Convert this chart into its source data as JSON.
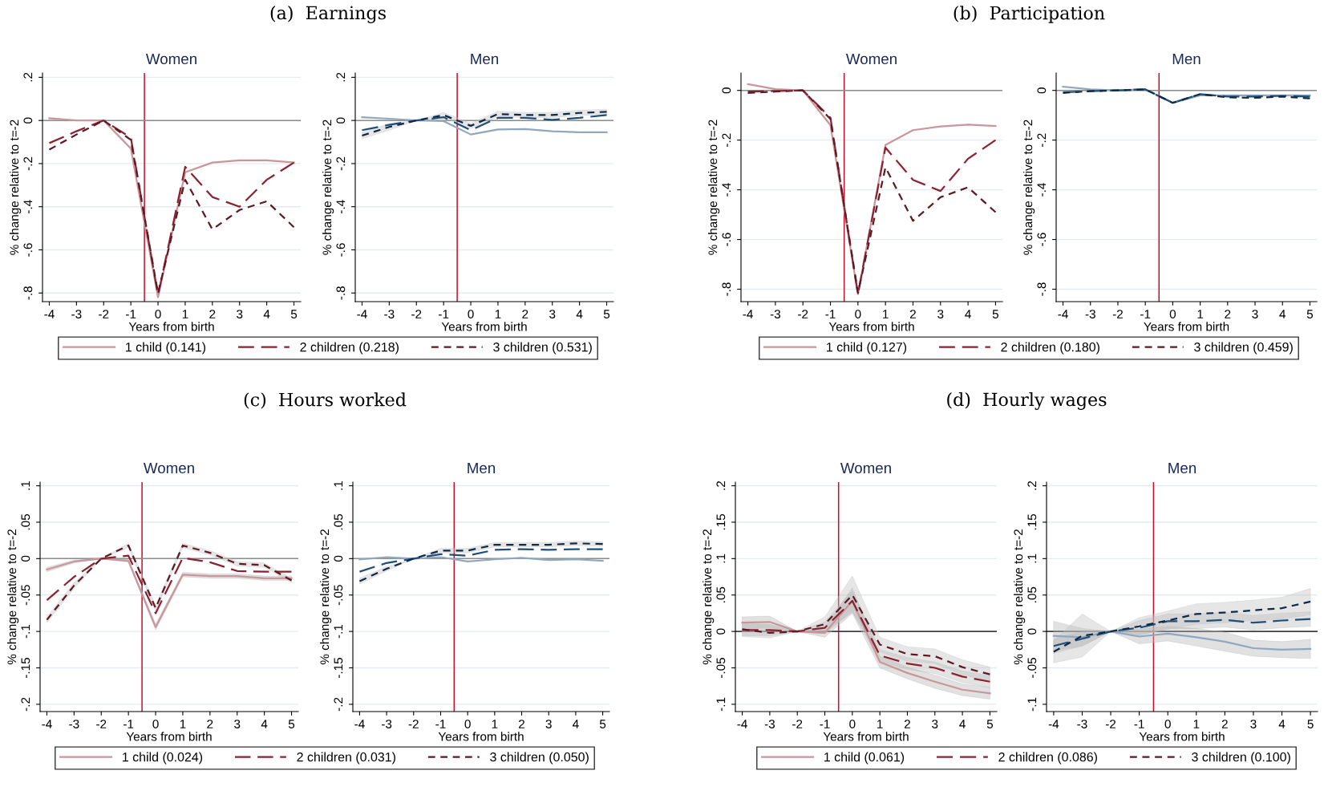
{
  "chart_data": [
    {
      "type": "line",
      "subtitle": "(a)  Earnings",
      "title": "Women",
      "xlabel": "Years from birth",
      "ylabel": "% change relative to t=-2",
      "x": [
        -4,
        -3,
        -2,
        -1,
        0,
        1,
        2,
        3,
        4,
        5
      ],
      "xlim": [
        -4.25,
        5.25
      ],
      "xticks": [
        -4,
        -3,
        -2,
        -1,
        0,
        1,
        2,
        3,
        4,
        5
      ],
      "ylim": [
        -0.84,
        0.22
      ],
      "yticks": [
        {
          "value": -0.8,
          "label": "-.8"
        },
        {
          "value": -0.6,
          "label": "-.6"
        },
        {
          "value": -0.4,
          "label": "-.4"
        },
        {
          "value": -0.2,
          "label": "-.2"
        },
        0,
        {
          "value": 0.2,
          "label": ".2"
        }
      ],
      "grid": "y",
      "legend": "bottom",
      "ref_lines": [
        {
          "axis": "x",
          "value": -0.5,
          "color": "#c8102e"
        },
        {
          "axis": "y",
          "value": 0,
          "color": "#8c8c8c"
        }
      ],
      "series": [
        {
          "name": "1 child (0.141)",
          "color": "#c9969c",
          "line_style": "solid",
          "values": [
            0.01,
            0,
            0,
            -0.13,
            -0.82,
            -0.24,
            -0.195,
            -0.185,
            -0.185,
            -0.195
          ]
        },
        {
          "name": "2 children (0.218)",
          "color": "#8b2232",
          "line_style": "dashed",
          "values": [
            -0.105,
            -0.05,
            0,
            -0.08,
            -0.81,
            -0.215,
            -0.355,
            -0.4,
            -0.275,
            -0.195
          ]
        },
        {
          "name": "3 children (0.531)",
          "color": "#5e1a24",
          "line_style": "dashed",
          "values": [
            -0.135,
            -0.065,
            0,
            -0.09,
            -0.8,
            -0.275,
            -0.505,
            -0.415,
            -0.375,
            -0.495
          ]
        }
      ]
    },
    {
      "type": "line",
      "title": "Men",
      "xlabel": "Years from birth",
      "ylabel": "% change relative to t=-2",
      "x": [
        -4,
        -3,
        -2,
        -1,
        0,
        1,
        2,
        3,
        4,
        5
      ],
      "xlim": [
        -4.25,
        5.25
      ],
      "xticks": [
        -4,
        -3,
        -2,
        -1,
        0,
        1,
        2,
        3,
        4,
        5
      ],
      "ylim": [
        -0.84,
        0.22
      ],
      "yticks": [
        {
          "value": -0.8,
          "label": "-.8"
        },
        {
          "value": -0.6,
          "label": "-.6"
        },
        {
          "value": -0.4,
          "label": "-.4"
        },
        {
          "value": -0.2,
          "label": "-.2"
        },
        0,
        {
          "value": 0.2,
          "label": ".2"
        }
      ],
      "grid": "y",
      "ref_lines": [
        {
          "axis": "x",
          "value": -0.5,
          "color": "#c8102e"
        },
        {
          "axis": "y",
          "value": 0,
          "color": "#8c8c8c"
        }
      ],
      "series": [
        {
          "color": "#8fa8bf",
          "line_style": "solid",
          "values": [
            0.015,
            0.008,
            0,
            -0.003,
            -0.065,
            -0.042,
            -0.04,
            -0.05,
            -0.055,
            -0.055
          ]
        },
        {
          "color": "#1f4e79",
          "line_style": "dashed",
          "values": [
            -0.045,
            -0.02,
            0,
            0.015,
            -0.045,
            0.012,
            0.012,
            0.003,
            0.012,
            0.025
          ]
        },
        {
          "color": "#0e2a47",
          "line_style": "dashed",
          "values": [
            -0.07,
            -0.03,
            0,
            0.025,
            -0.025,
            0.03,
            0.025,
            0.025,
            0.035,
            0.04
          ],
          "lower": [
            -0.085,
            -0.045,
            0,
            0.013,
            -0.037,
            0.018,
            0.013,
            0.013,
            0.023,
            0.028
          ],
          "upper": [
            -0.055,
            -0.015,
            0,
            0.037,
            -0.013,
            0.042,
            0.037,
            0.037,
            0.047,
            0.052
          ]
        }
      ]
    },
    {
      "type": "line",
      "subtitle": "(b)  Participation",
      "title": "Women",
      "xlabel": "Years from birth",
      "ylabel": "% change relative to t=-2",
      "x": [
        -4,
        -3,
        -2,
        -1,
        0,
        1,
        2,
        3,
        4,
        5
      ],
      "xlim": [
        -4.25,
        5.25
      ],
      "xticks": [
        -4,
        -3,
        -2,
        -1,
        0,
        1,
        2,
        3,
        4,
        5
      ],
      "ylim": [
        -0.85,
        0.07
      ],
      "yticks": [
        {
          "value": -0.8,
          "label": "-.8"
        },
        {
          "value": -0.6,
          "label": "-.6"
        },
        {
          "value": -0.4,
          "label": "-.4"
        },
        {
          "value": -0.2,
          "label": "-.2"
        },
        0
      ],
      "grid": "y",
      "legend": "bottom",
      "ref_lines": [
        {
          "axis": "x",
          "value": -0.5,
          "color": "#c8102e"
        },
        {
          "axis": "y",
          "value": 0,
          "color": "#8c8c8c"
        }
      ],
      "series": [
        {
          "name": "1 child (0.127)",
          "color": "#c9969c",
          "line_style": "solid",
          "values": [
            0.025,
            0.005,
            0,
            -0.14,
            -0.82,
            -0.22,
            -0.16,
            -0.145,
            -0.138,
            -0.143
          ]
        },
        {
          "name": "2 children (0.180)",
          "color": "#8b2232",
          "line_style": "dashed",
          "values": [
            -0.005,
            -0.003,
            0,
            -0.11,
            -0.82,
            -0.23,
            -0.36,
            -0.405,
            -0.275,
            -0.2
          ]
        },
        {
          "name": "3 children (0.459)",
          "color": "#5e1a24",
          "line_style": "dashed",
          "values": [
            -0.01,
            -0.005,
            0,
            -0.115,
            -0.815,
            -0.31,
            -0.525,
            -0.43,
            -0.39,
            -0.49
          ]
        }
      ]
    },
    {
      "type": "line",
      "title": "Men",
      "xlabel": "Years from birth",
      "ylabel": "% change relative to t=-2",
      "x": [
        -4,
        -3,
        -2,
        -1,
        0,
        1,
        2,
        3,
        4,
        5
      ],
      "xlim": [
        -4.25,
        5.25
      ],
      "xticks": [
        -4,
        -3,
        -2,
        -1,
        0,
        1,
        2,
        3,
        4,
        5
      ],
      "ylim": [
        -0.85,
        0.07
      ],
      "yticks": [
        {
          "value": -0.8,
          "label": "-.8"
        },
        {
          "value": -0.6,
          "label": "-.6"
        },
        {
          "value": -0.4,
          "label": "-.4"
        },
        {
          "value": -0.2,
          "label": "-.2"
        },
        0
      ],
      "grid": "y",
      "ref_lines": [
        {
          "axis": "x",
          "value": -0.5,
          "color": "#c8102e"
        },
        {
          "axis": "y",
          "value": 0,
          "color": "#8c8c8c"
        }
      ],
      "series": [
        {
          "color": "#8fa8bf",
          "line_style": "solid",
          "values": [
            0.015,
            0.004,
            0,
            0.005,
            -0.05,
            -0.02,
            -0.02,
            -0.02,
            -0.02,
            -0.02
          ]
        },
        {
          "color": "#1f4e79",
          "line_style": "dashed",
          "values": [
            -0.008,
            -0.003,
            0,
            0.004,
            -0.05,
            -0.015,
            -0.025,
            -0.025,
            -0.022,
            -0.025
          ]
        },
        {
          "color": "#0e2a47",
          "line_style": "dashed",
          "values": [
            -0.01,
            -0.003,
            0,
            0.004,
            -0.05,
            -0.015,
            -0.028,
            -0.03,
            -0.025,
            -0.032
          ]
        }
      ]
    },
    {
      "type": "line",
      "subtitle": "(c)  Hours worked",
      "title": "Women",
      "xlabel": "Years from birth",
      "ylabel": "% change relative to t=-2",
      "x": [
        -4,
        -3,
        -2,
        -1,
        0,
        1,
        2,
        3,
        4,
        5
      ],
      "xlim": [
        -4.25,
        5.25
      ],
      "xticks": [
        -4,
        -3,
        -2,
        -1,
        0,
        1,
        2,
        3,
        4,
        5
      ],
      "ylim": [
        -0.21,
        0.105
      ],
      "yticks": [
        {
          "value": -0.2,
          "label": "-.2"
        },
        {
          "value": -0.15,
          "label": "-.15"
        },
        {
          "value": -0.1,
          "label": "-.1"
        },
        {
          "value": -0.05,
          "label": "-.05"
        },
        0,
        {
          "value": 0.05,
          "label": ".05"
        },
        {
          "value": 0.1,
          "label": ".1"
        }
      ],
      "grid": "y",
      "legend": "bottom",
      "ref_lines": [
        {
          "axis": "x",
          "value": -0.5,
          "color": "#c8102e"
        },
        {
          "axis": "y",
          "value": 0,
          "color": "#8c8c8c"
        }
      ],
      "series": [
        {
          "name": "1 child (0.024)",
          "color": "#c9969c",
          "line_style": "solid",
          "values": [
            -0.015,
            -0.004,
            0,
            -0.003,
            -0.094,
            -0.022,
            -0.024,
            -0.024,
            -0.027,
            -0.027
          ],
          "lower": [
            -0.018,
            -0.006,
            0,
            -0.005,
            -0.098,
            -0.025,
            -0.027,
            -0.027,
            -0.03,
            -0.03
          ],
          "upper": [
            -0.012,
            -0.002,
            0,
            -0.001,
            -0.09,
            -0.019,
            -0.021,
            -0.021,
            -0.024,
            -0.024
          ]
        },
        {
          "name": "2 children (0.031)",
          "color": "#8b2232",
          "line_style": "dashed",
          "values": [
            -0.057,
            -0.025,
            0,
            0.004,
            -0.075,
            0.001,
            -0.005,
            -0.017,
            -0.018,
            -0.018
          ]
        },
        {
          "name": "3 children (0.050)",
          "color": "#5e1a24",
          "line_style": "dashed",
          "values": [
            -0.084,
            -0.037,
            0,
            0.018,
            -0.068,
            0.018,
            0.008,
            -0.007,
            -0.009,
            -0.03
          ],
          "lower": [
            -0.088,
            -0.041,
            0,
            0.015,
            -0.072,
            0.015,
            0.005,
            -0.01,
            -0.012,
            -0.033
          ],
          "upper": [
            -0.08,
            -0.033,
            0,
            0.021,
            -0.064,
            0.021,
            0.011,
            -0.004,
            -0.006,
            -0.027
          ]
        }
      ]
    },
    {
      "type": "line",
      "title": "Men",
      "xlabel": "Years from birth",
      "ylabel": "% change relative to t=-2",
      "x": [
        -4,
        -3,
        -2,
        -1,
        0,
        1,
        2,
        3,
        4,
        5
      ],
      "xlim": [
        -4.25,
        5.25
      ],
      "xticks": [
        -4,
        -3,
        -2,
        -1,
        0,
        1,
        2,
        3,
        4,
        5
      ],
      "ylim": [
        -0.21,
        0.105
      ],
      "yticks": [
        {
          "value": -0.2,
          "label": "-.2"
        },
        {
          "value": -0.15,
          "label": "-.15"
        },
        {
          "value": -0.1,
          "label": "-.1"
        },
        {
          "value": -0.05,
          "label": "-.05"
        },
        0,
        {
          "value": 0.05,
          "label": ".05"
        },
        {
          "value": 0.1,
          "label": ".1"
        }
      ],
      "grid": "y",
      "ref_lines": [
        {
          "axis": "x",
          "value": -0.5,
          "color": "#c8102e"
        },
        {
          "axis": "y",
          "value": 0,
          "color": "#8c8c8c"
        }
      ],
      "series": [
        {
          "color": "#8fa8bf",
          "line_style": "solid",
          "values": [
            -0.001,
            0.002,
            0,
            0.002,
            -0.004,
            -0.001,
            0.001,
            -0.002,
            -0.001,
            -0.003
          ]
        },
        {
          "color": "#1f4e79",
          "line_style": "dashed",
          "values": [
            -0.018,
            -0.006,
            0,
            0.006,
            0.004,
            0.012,
            0.013,
            0.012,
            0.013,
            0.013
          ]
        },
        {
          "color": "#0e2a47",
          "line_style": "dashed",
          "values": [
            -0.031,
            -0.014,
            0,
            0.011,
            0.011,
            0.019,
            0.019,
            0.019,
            0.021,
            0.02
          ],
          "lower": [
            -0.035,
            -0.017,
            0,
            0.008,
            0.008,
            0.016,
            0.016,
            0.016,
            0.018,
            0.017
          ],
          "upper": [
            -0.027,
            -0.011,
            0,
            0.014,
            0.014,
            0.022,
            0.022,
            0.022,
            0.024,
            0.023
          ]
        }
      ]
    },
    {
      "type": "line",
      "subtitle": "(d)  Hourly wages",
      "title": "Women",
      "xlabel": "Years from birth",
      "ylabel": "% change relative to t=-2",
      "x": [
        -4,
        -3,
        -2,
        -1,
        0,
        1,
        2,
        3,
        4,
        5
      ],
      "xlim": [
        -4.25,
        5.25
      ],
      "xticks": [
        -4,
        -3,
        -2,
        -1,
        0,
        1,
        2,
        3,
        4,
        5
      ],
      "ylim": [
        -0.11,
        0.205
      ],
      "yticks": [
        {
          "value": -0.1,
          "label": "-.1"
        },
        {
          "value": -0.05,
          "label": "-.05"
        },
        0,
        {
          "value": 0.05,
          "label": ".05"
        },
        {
          "value": 0.1,
          "label": ".1"
        },
        {
          "value": 0.15,
          "label": ".15"
        },
        {
          "value": 0.2,
          "label": ".2"
        }
      ],
      "grid": "y",
      "legend": "bottom",
      "ref_lines": [
        {
          "axis": "x",
          "value": -0.5,
          "color": "#c8102e"
        },
        {
          "axis": "y",
          "value": 0,
          "color": "#404040"
        }
      ],
      "series": [
        {
          "name": "1 child (0.061)",
          "color": "#c9969c",
          "line_style": "solid",
          "values": [
            0.012,
            0.013,
            0,
            -0.002,
            0.042,
            -0.042,
            -0.057,
            -0.069,
            -0.08,
            -0.085
          ],
          "lower": [
            0.004,
            0.005,
            0,
            -0.008,
            0.025,
            -0.05,
            -0.065,
            -0.078,
            -0.088,
            -0.093
          ],
          "upper": [
            0.02,
            0.021,
            0,
            0.005,
            0.06,
            -0.034,
            -0.049,
            -0.06,
            -0.072,
            -0.077
          ]
        },
        {
          "name": "2 children (0.086)",
          "color": "#8b2232",
          "line_style": "dashed",
          "values": [
            0.002,
            0.002,
            0,
            0.005,
            0.042,
            -0.033,
            -0.044,
            -0.05,
            -0.062,
            -0.069
          ],
          "lower": [
            -0.006,
            -0.006,
            0,
            -0.003,
            0.028,
            -0.041,
            -0.052,
            -0.058,
            -0.07,
            -0.077
          ],
          "upper": [
            0.01,
            0.01,
            0,
            0.013,
            0.056,
            -0.025,
            -0.036,
            -0.042,
            -0.054,
            -0.061
          ]
        },
        {
          "name": "3 children (0.100)",
          "color": "#5e1a24",
          "line_style": "dashed",
          "values": [
            0.003,
            -0.002,
            0,
            0.01,
            0.05,
            -0.018,
            -0.031,
            -0.034,
            -0.049,
            -0.059
          ],
          "lower": [
            -0.007,
            -0.009,
            0,
            0,
            0.026,
            -0.028,
            -0.041,
            -0.044,
            -0.059,
            -0.069
          ],
          "upper": [
            0.013,
            0.008,
            0,
            0.02,
            0.076,
            -0.008,
            -0.021,
            -0.024,
            -0.039,
            -0.049
          ]
        }
      ]
    },
    {
      "type": "line",
      "title": "Men",
      "xlabel": "Years from birth",
      "ylabel": "% change relative to t=-2",
      "x": [
        -4,
        -3,
        -2,
        -1,
        0,
        1,
        2,
        3,
        4,
        5
      ],
      "xlim": [
        -4.25,
        5.25
      ],
      "xticks": [
        -4,
        -3,
        -2,
        -1,
        0,
        1,
        2,
        3,
        4,
        5
      ],
      "ylim": [
        -0.11,
        0.205
      ],
      "yticks": [
        {
          "value": -0.1,
          "label": "-.1"
        },
        {
          "value": -0.05,
          "label": "-.05"
        },
        0,
        {
          "value": 0.05,
          "label": ".05"
        },
        {
          "value": 0.1,
          "label": ".1"
        },
        {
          "value": 0.15,
          "label": ".15"
        },
        {
          "value": 0.2,
          "label": ".2"
        }
      ],
      "grid": "y",
      "ref_lines": [
        {
          "axis": "x",
          "value": -0.5,
          "color": "#c8102e"
        },
        {
          "axis": "y",
          "value": 0,
          "color": "#404040"
        }
      ],
      "series": [
        {
          "color": "#8fa8bf",
          "line_style": "solid",
          "values": [
            -0.006,
            -0.008,
            0,
            -0.007,
            -0.003,
            -0.008,
            -0.014,
            -0.023,
            -0.025,
            -0.024
          ],
          "lower": [
            -0.026,
            -0.02,
            0,
            -0.017,
            -0.013,
            -0.02,
            -0.027,
            -0.034,
            -0.036,
            -0.037
          ],
          "upper": [
            0.014,
            0.004,
            0,
            0.003,
            0.007,
            0.004,
            -0.001,
            -0.012,
            -0.014,
            -0.011
          ]
        },
        {
          "color": "#1f4e79",
          "line_style": "dashed",
          "values": [
            -0.02,
            -0.01,
            0,
            0.005,
            0.014,
            0.014,
            0.016,
            0.012,
            0.015,
            0.017
          ],
          "lower": [
            -0.03,
            -0.02,
            0,
            -0.005,
            0.004,
            0.004,
            0.006,
            0.002,
            0.005,
            0.007
          ],
          "upper": [
            -0.01,
            0,
            0,
            0.015,
            0.024,
            0.024,
            0.026,
            0.022,
            0.025,
            0.027
          ]
        },
        {
          "color": "#0e2a47",
          "line_style": "dashed",
          "values": [
            -0.028,
            -0.006,
            0,
            0.007,
            0.015,
            0.024,
            0.026,
            0.029,
            0.032,
            0.041
          ],
          "lower": [
            -0.043,
            -0.035,
            0,
            -0.005,
            0.003,
            0.01,
            0.012,
            0.015,
            0.017,
            0.023
          ],
          "upper": [
            -0.013,
            0.024,
            0,
            0.019,
            0.028,
            0.038,
            0.04,
            0.043,
            0.047,
            0.059
          ]
        }
      ]
    }
  ]
}
